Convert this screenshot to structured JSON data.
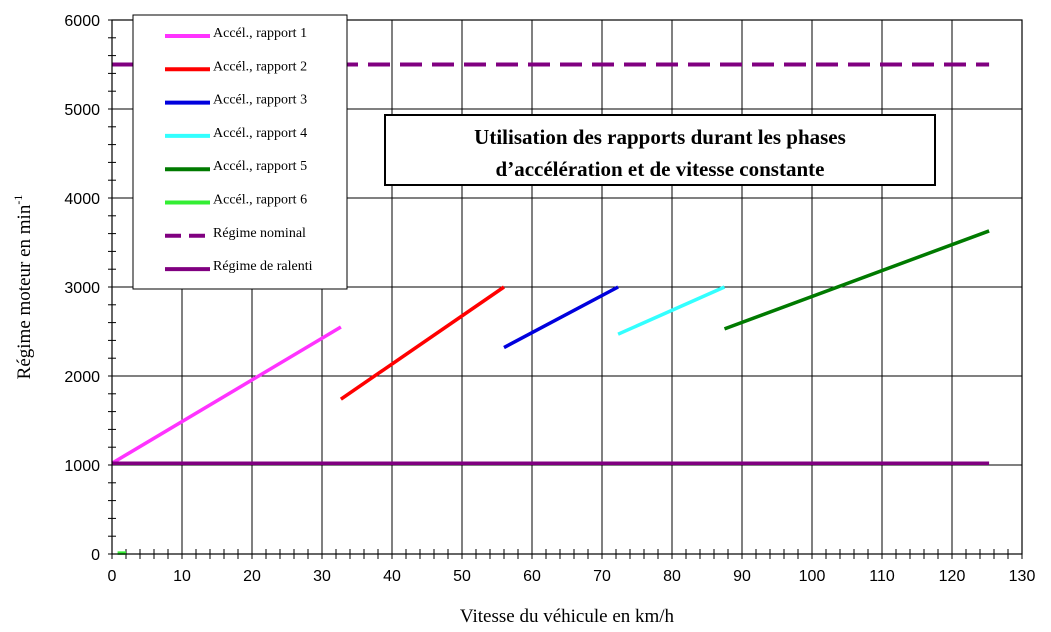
{
  "chart_data": {
    "type": "line",
    "title": "",
    "xlabel": "Vitesse du véhicule en km/h",
    "ylabel": "Régime moteur en min",
    "ylabel_sup": "-1",
    "xlim": [
      0,
      130
    ],
    "ylim": [
      0,
      6000
    ],
    "xticks": [
      0,
      10,
      20,
      30,
      40,
      50,
      60,
      70,
      80,
      90,
      100,
      110,
      120,
      130
    ],
    "yticks": [
      0,
      1000,
      2000,
      3000,
      4000,
      5000,
      6000
    ],
    "grid": true,
    "legend_position": "top-left",
    "annotation": [
      "Utilisation des rapports durant les phases",
      "d’accélération et de vitesse constante"
    ],
    "series": [
      {
        "name": "Accél., rapport 1",
        "color": "#ff33ff",
        "style": "solid",
        "x": [
          0,
          32.7
        ],
        "y": [
          1020,
          2550
        ]
      },
      {
        "name": "Accél., rapport 2",
        "color": "#ff0000",
        "style": "solid",
        "x": [
          32.7,
          56.0
        ],
        "y": [
          1740,
          3000
        ]
      },
      {
        "name": "Accél., rapport 3",
        "color": "#0000dd",
        "style": "solid",
        "x": [
          56.0,
          72.3
        ],
        "y": [
          2320,
          3000
        ]
      },
      {
        "name": "Accél., rapport 4",
        "color": "#33ffff",
        "style": "solid",
        "x": [
          72.3,
          87.5
        ],
        "y": [
          2470,
          3000
        ]
      },
      {
        "name": "Accél., rapport 5",
        "color": "#007a00",
        "style": "solid",
        "x": [
          87.5,
          125.3
        ],
        "y": [
          2530,
          3630
        ]
      },
      {
        "name": "Accél., rapport 6",
        "color": "#33ee33",
        "style": "solid",
        "x": [
          0.8,
          2.0
        ],
        "y": [
          10,
          10
        ]
      },
      {
        "name": "Régime nominal",
        "color": "#800080",
        "style": "dashed",
        "x": [
          0,
          125.3
        ],
        "y": [
          5500,
          5500
        ]
      },
      {
        "name": "Régime de ralenti",
        "color": "#800080",
        "style": "solid",
        "x": [
          0,
          125.3
        ],
        "y": [
          1020,
          1020
        ]
      }
    ]
  }
}
